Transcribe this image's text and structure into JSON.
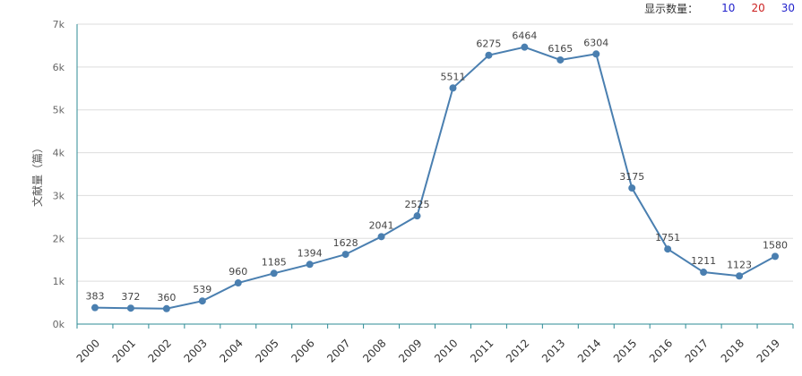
{
  "toolbar": {
    "label": "显示数量：",
    "options": [
      {
        "label": "10",
        "color": "#2222cc"
      },
      {
        "label": "20",
        "color": "#cc2222"
      },
      {
        "label": "30",
        "color": "#2222cc"
      }
    ]
  },
  "chart_data": {
    "type": "line",
    "title": "",
    "xlabel": "",
    "ylabel": "文献量（篇）",
    "categories": [
      "2000",
      "2001",
      "2002",
      "2003",
      "2004",
      "2005",
      "2006",
      "2007",
      "2008",
      "2009",
      "2010",
      "2011",
      "2012",
      "2013",
      "2014",
      "2015",
      "2016",
      "2017",
      "2018",
      "2019"
    ],
    "series": [
      {
        "name": "文献量",
        "values": [
          383,
          372,
          360,
          539,
          960,
          1185,
          1394,
          1628,
          2041,
          2525,
          5511,
          6275,
          6464,
          6165,
          6304,
          3175,
          1751,
          1211,
          1123,
          1580
        ],
        "color": "#4a7fb0"
      }
    ],
    "ylim": [
      0,
      7000
    ],
    "yticks": [
      0,
      1000,
      2000,
      3000,
      4000,
      5000,
      6000,
      7000
    ],
    "ytick_labels": [
      "0k",
      "1k",
      "2k",
      "3k",
      "4k",
      "5k",
      "6k",
      "7k"
    ],
    "grid": true,
    "axis_color": "#2e8b96",
    "grid_color": "#dddddd"
  }
}
